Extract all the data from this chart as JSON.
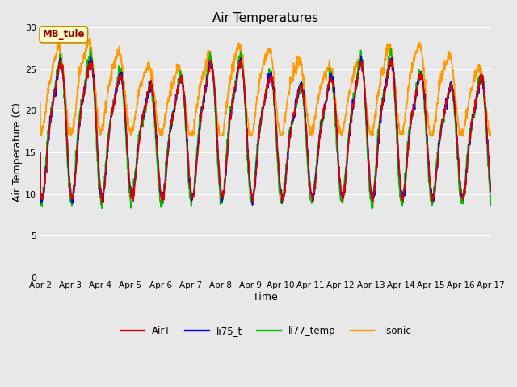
{
  "title": "Air Temperatures",
  "xlabel": "Time",
  "ylabel": "Air Temperature (C)",
  "ylim": [
    0,
    30
  ],
  "yticks": [
    0,
    5,
    10,
    15,
    20,
    25,
    30
  ],
  "background_color": "#e8e8e8",
  "plot_bg_color": "#e8e8e8",
  "grid_color": "#ffffff",
  "annotation_text": "MB_tule",
  "annotation_bg": "#ffffcc",
  "annotation_border": "#cc8800",
  "annotation_text_color": "#990000",
  "colors": {
    "AirT": "#dd0000",
    "li75_t": "#0000dd",
    "li77_temp": "#00bb00",
    "Tsonic": "#ff9900"
  },
  "line_width": 1.2,
  "figsize": [
    6.4,
    4.8
  ],
  "dpi": 100,
  "xtick_labels": [
    "Apr 2",
    "Apr 3",
    "Apr 4",
    "Apr 5",
    "Apr 6",
    "Apr 7",
    "Apr 8",
    "Apr 9",
    "Apr 10",
    "Apr 11",
    "Apr 12",
    "Apr 13",
    "Apr 14",
    "Apr 15",
    "Apr 16",
    "Apr 17"
  ],
  "xtick_positions": [
    0,
    1,
    2,
    3,
    4,
    5,
    6,
    7,
    8,
    9,
    10,
    11,
    12,
    13,
    14,
    15
  ]
}
